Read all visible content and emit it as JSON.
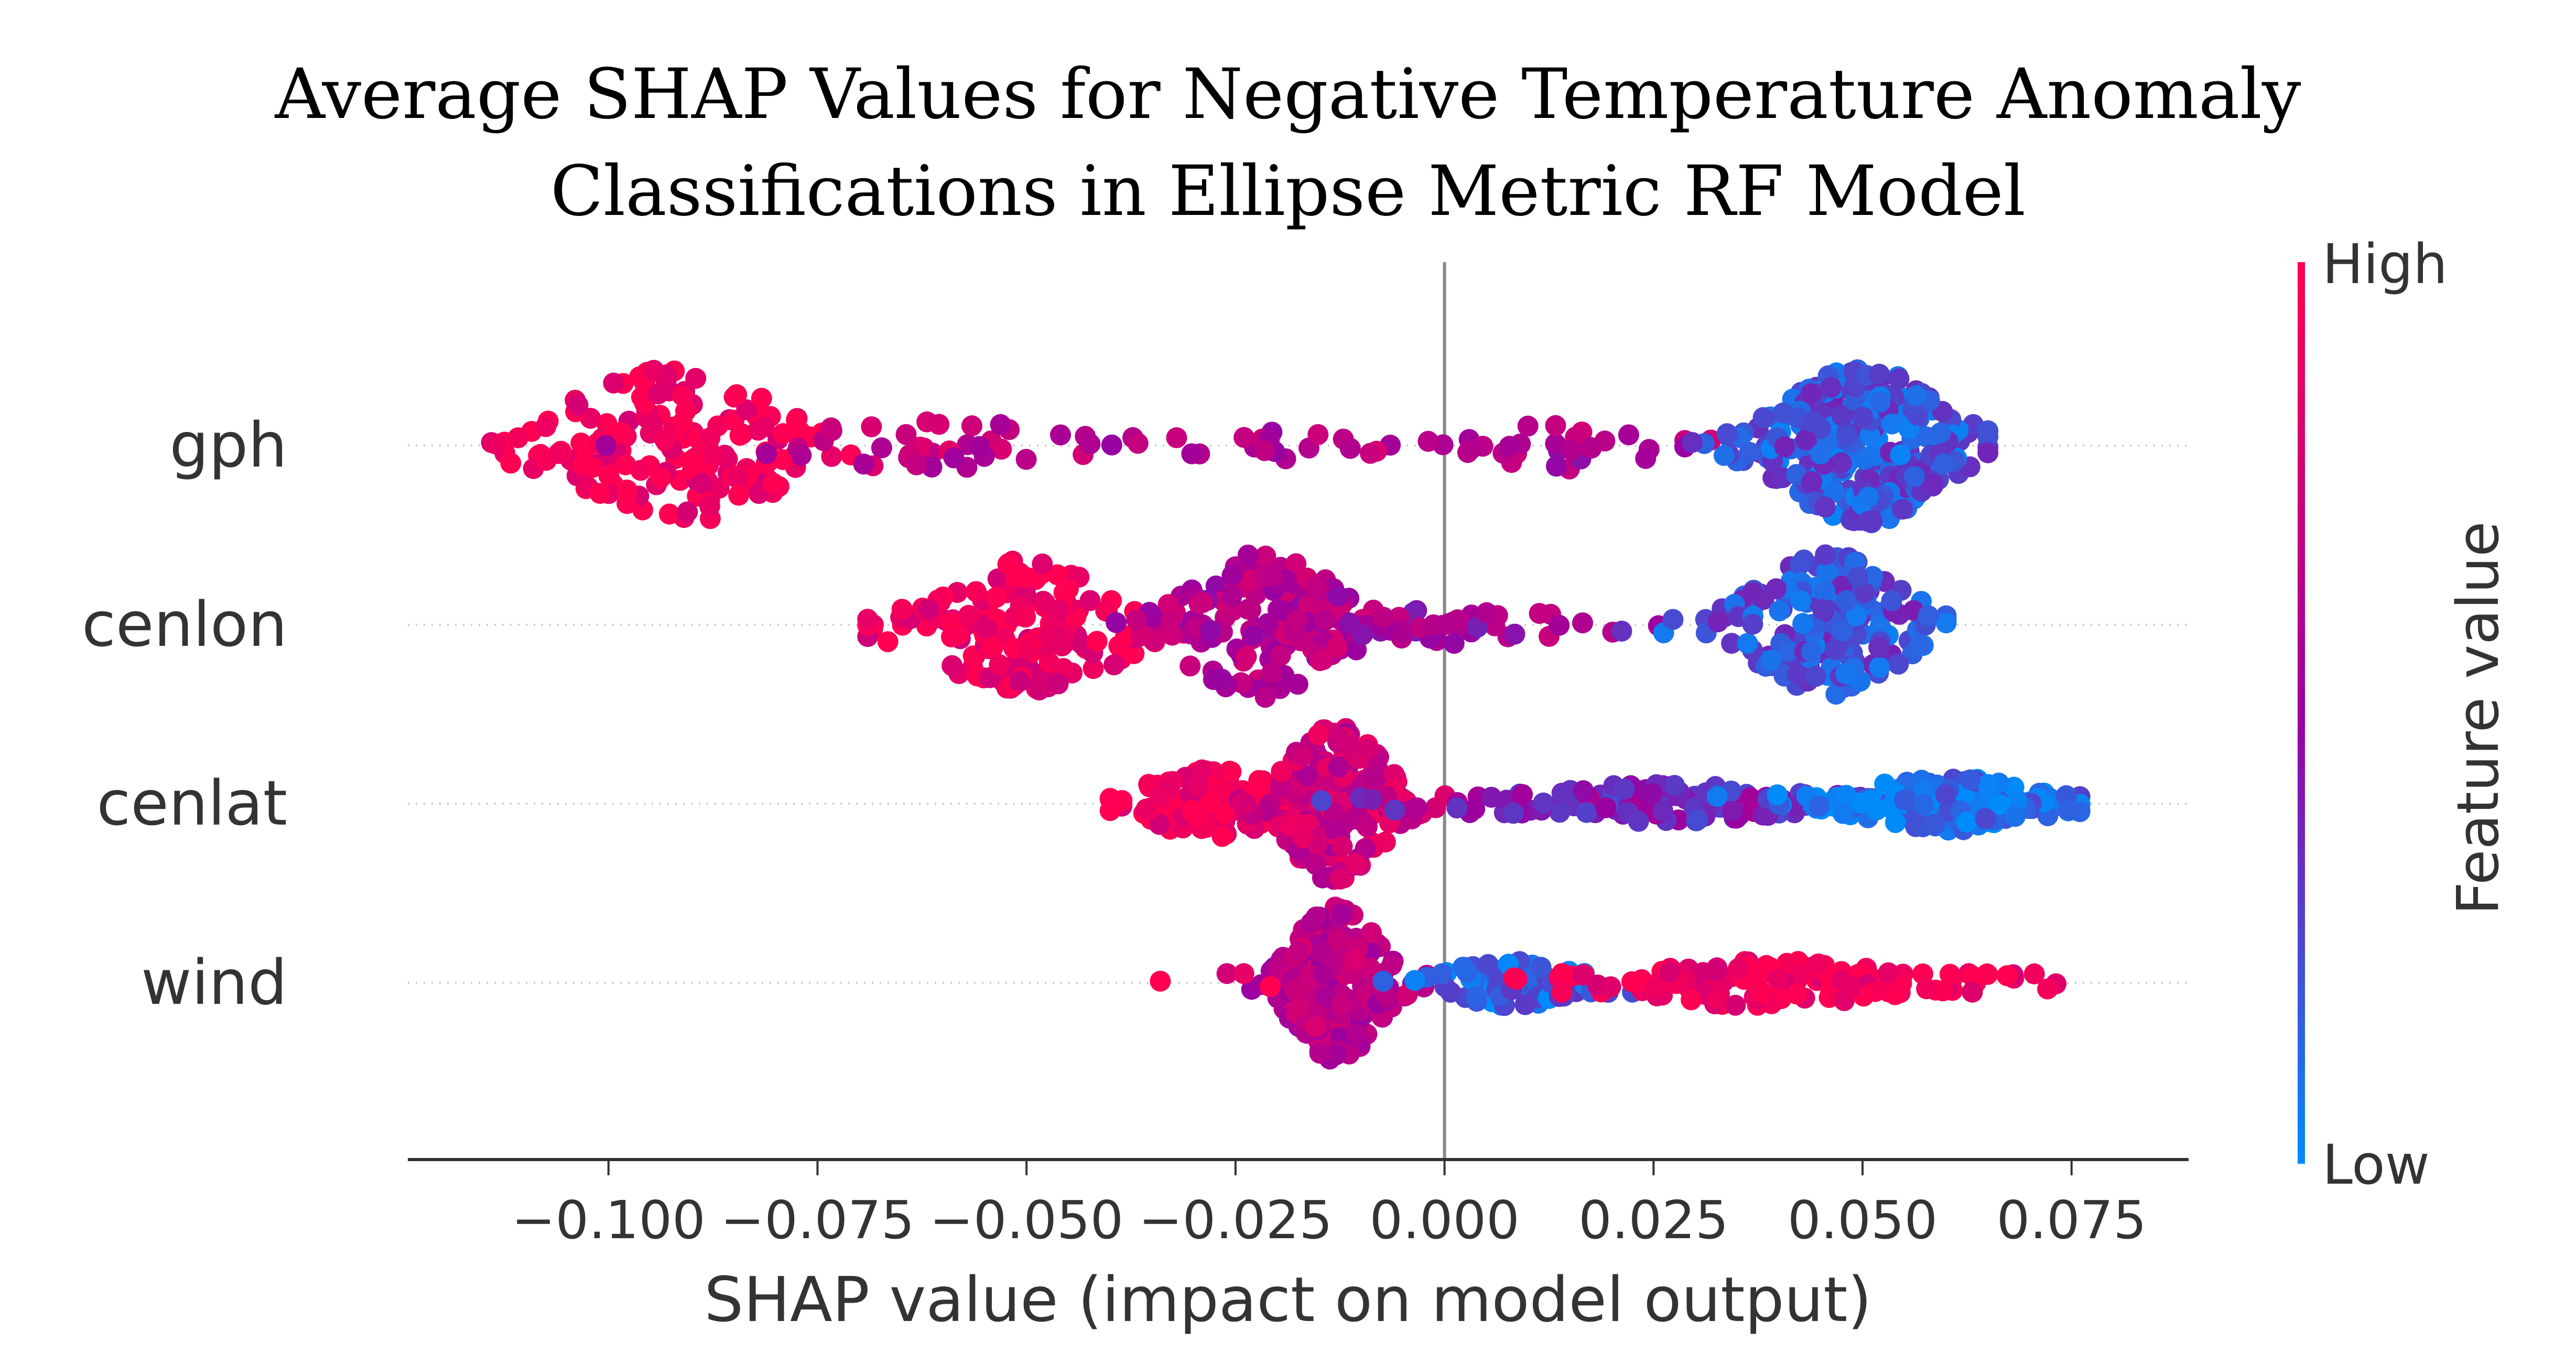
{
  "chart_data": {
    "type": "scatter",
    "subtype": "shap-beeswarm",
    "title": [
      "Average SHAP Values for Negative Temperature Anomaly",
      "Classifications in Ellipse Metric RF Model"
    ],
    "xlabel": "SHAP value (impact on model output)",
    "ylabel": "",
    "xlim": [
      -0.124,
      0.089
    ],
    "xticks": [
      -0.1,
      -0.075,
      -0.05,
      -0.025,
      0.0,
      0.025,
      0.05,
      0.075
    ],
    "xtick_labels": [
      "−0.100",
      "−0.075",
      "−0.050",
      "−0.025",
      "0.000",
      "0.025",
      "0.050",
      "0.075"
    ],
    "zero_line": 0.0,
    "colorbar": {
      "label": "Feature value",
      "high_label": "High",
      "low_label": "Low",
      "high_color": "#ff0052",
      "mid_color": "#9b00a0",
      "low_color": "#008bfb"
    },
    "features": [
      {
        "name": "gph",
        "range": [
          -0.114,
          0.065
        ],
        "clusters": [
          {
            "center": -0.092,
            "spread": 0.018,
            "count": 160,
            "color_value": 0.95,
            "height": 1.0
          },
          {
            "center": -0.062,
            "spread": 0.02,
            "count": 40,
            "color_value": 0.7,
            "height": 0.35
          },
          {
            "center": -0.02,
            "spread": 0.02,
            "count": 22,
            "color_value": 0.65,
            "height": 0.2
          },
          {
            "center": 0.015,
            "spread": 0.015,
            "count": 30,
            "color_value": 0.6,
            "height": 0.3
          },
          {
            "center": 0.05,
            "spread": 0.013,
            "count": 300,
            "color_value": 0.2,
            "height": 1.0
          }
        ]
      },
      {
        "name": "cenlon",
        "range": [
          -0.069,
          0.06
        ],
        "clusters": [
          {
            "center": -0.05,
            "spread": 0.016,
            "count": 160,
            "color_value": 0.92,
            "height": 0.85
          },
          {
            "center": -0.022,
            "spread": 0.012,
            "count": 160,
            "color_value": 0.62,
            "height": 0.95
          },
          {
            "center": 0.003,
            "spread": 0.018,
            "count": 40,
            "color_value": 0.55,
            "height": 0.25
          },
          {
            "center": 0.046,
            "spread": 0.012,
            "count": 170,
            "color_value": 0.22,
            "height": 0.9
          }
        ]
      },
      {
        "name": "cenlat",
        "range": [
          -0.04,
          0.076
        ],
        "clusters": [
          {
            "center": -0.027,
            "spread": 0.012,
            "count": 110,
            "color_value": 0.95,
            "height": 0.45
          },
          {
            "center": -0.013,
            "spread": 0.008,
            "count": 200,
            "color_value": 0.75,
            "height": 1.0
          },
          {
            "center": 0.025,
            "spread": 0.024,
            "count": 140,
            "color_value": 0.4,
            "height": 0.25
          },
          {
            "center": 0.06,
            "spread": 0.015,
            "count": 150,
            "color_value": 0.1,
            "height": 0.35
          }
        ]
      },
      {
        "name": "wind",
        "range": [
          -0.034,
          0.078
        ],
        "clusters": [
          {
            "center": -0.013,
            "spread": 0.007,
            "count": 220,
            "color_value": 0.65,
            "height": 1.0
          },
          {
            "center": 0.008,
            "spread": 0.01,
            "count": 80,
            "color_value": 0.15,
            "height": 0.3
          },
          {
            "center": 0.038,
            "spread": 0.022,
            "count": 140,
            "color_value": 0.95,
            "height": 0.3
          },
          {
            "center": 0.07,
            "spread": 0.006,
            "count": 8,
            "color_value": 0.95,
            "height": 0.1
          },
          {
            "center": -0.034,
            "spread": 0.001,
            "count": 1,
            "color_value": 0.95,
            "height": 0.05
          },
          {
            "center": -0.022,
            "spread": 0.002,
            "count": 2,
            "color_value": 0.95,
            "height": 0.05
          }
        ]
      }
    ]
  }
}
